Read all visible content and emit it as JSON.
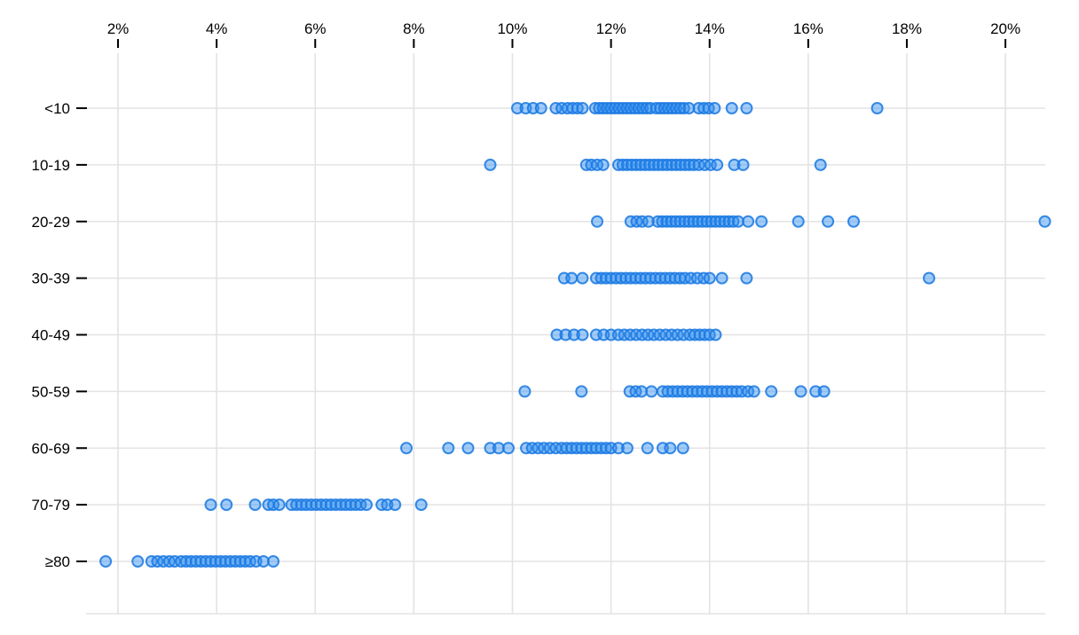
{
  "chart_data": {
    "type": "scatter",
    "variant": "strip-plot",
    "title": "",
    "xlabel": "",
    "ylabel": "",
    "x_axis": {
      "position": "top",
      "tick_values": [
        2,
        4,
        6,
        8,
        10,
        12,
        14,
        16,
        18,
        20
      ],
      "tick_labels": [
        "2%",
        "4%",
        "6%",
        "8%",
        "10%",
        "12%",
        "14%",
        "16%",
        "18%",
        "20%"
      ],
      "xlim": [
        1.4,
        21.3
      ],
      "unit": "percent"
    },
    "y_axis": {
      "categories": [
        "<10",
        "10-19",
        "20-29",
        "30-39",
        "40-49",
        "50-59",
        "60-69",
        "70-79",
        "≥80"
      ]
    },
    "grid": true,
    "legend": "none",
    "marker": {
      "shape": "circle",
      "fill": "#2e8ff2",
      "fill_opacity": 0.45,
      "stroke": "#1a78e0",
      "stroke_opacity": 0.85,
      "radius_px": 6
    },
    "colors": {
      "gridline": "#e3e3e3",
      "tick_mark": "#000000",
      "text": "#000000",
      "background": "#ffffff"
    },
    "series": [
      {
        "category": "<10",
        "values": [
          10.1,
          10.27,
          10.42,
          10.58,
          10.88,
          11.0,
          11.12,
          11.22,
          11.32,
          11.42,
          11.68,
          11.76,
          11.84,
          11.92,
          12.0,
          12.08,
          12.16,
          12.24,
          12.32,
          12.4,
          12.48,
          12.56,
          12.64,
          12.72,
          12.8,
          12.92,
          13.0,
          13.08,
          13.16,
          13.24,
          13.32,
          13.4,
          13.48,
          13.58,
          13.78,
          13.88,
          13.98,
          14.1,
          14.45,
          14.75,
          17.4
        ]
      },
      {
        "category": "10-19",
        "values": [
          9.55,
          11.5,
          11.6,
          11.72,
          11.84,
          12.15,
          12.24,
          12.33,
          12.42,
          12.51,
          12.6,
          12.69,
          12.78,
          12.87,
          12.96,
          13.05,
          13.14,
          13.23,
          13.32,
          13.41,
          13.5,
          13.59,
          13.68,
          13.78,
          13.9,
          14.02,
          14.15,
          14.5,
          14.68,
          16.25
        ]
      },
      {
        "category": "20-29",
        "values": [
          11.72,
          12.4,
          12.52,
          12.63,
          12.76,
          12.95,
          13.04,
          13.13,
          13.22,
          13.31,
          13.4,
          13.49,
          13.58,
          13.67,
          13.76,
          13.85,
          13.94,
          14.03,
          14.12,
          14.21,
          14.3,
          14.39,
          14.48,
          14.58,
          14.78,
          15.05,
          15.8,
          16.4,
          16.92,
          20.8
        ]
      },
      {
        "category": "30-39",
        "values": [
          11.05,
          11.2,
          11.42,
          11.7,
          11.8,
          11.9,
          12.0,
          12.1,
          12.2,
          12.3,
          12.4,
          12.5,
          12.6,
          12.7,
          12.8,
          12.9,
          13.0,
          13.1,
          13.2,
          13.3,
          13.4,
          13.5,
          13.62,
          13.75,
          13.88,
          14.0,
          14.25,
          14.75,
          18.45
        ]
      },
      {
        "category": "40-49",
        "values": [
          10.9,
          11.08,
          11.25,
          11.42,
          11.7,
          11.85,
          12.0,
          12.15,
          12.27,
          12.39,
          12.51,
          12.63,
          12.75,
          12.87,
          12.99,
          13.11,
          13.23,
          13.35,
          13.47,
          13.6,
          13.7,
          13.8,
          13.9,
          14.0,
          14.12
        ]
      },
      {
        "category": "50-59",
        "values": [
          10.25,
          11.4,
          12.38,
          12.5,
          12.62,
          12.82,
          13.05,
          13.15,
          13.25,
          13.35,
          13.45,
          13.55,
          13.65,
          13.75,
          13.85,
          13.95,
          14.05,
          14.15,
          14.25,
          14.35,
          14.45,
          14.55,
          14.65,
          14.78,
          14.9,
          15.25,
          15.85,
          16.15,
          16.32
        ]
      },
      {
        "category": "60-69",
        "values": [
          7.85,
          8.7,
          9.1,
          9.55,
          9.72,
          9.92,
          10.28,
          10.4,
          10.52,
          10.64,
          10.76,
          10.88,
          11.0,
          11.1,
          11.2,
          11.3,
          11.4,
          11.5,
          11.6,
          11.7,
          11.8,
          11.9,
          12.0,
          12.15,
          12.33,
          12.74,
          13.05,
          13.2,
          13.46
        ]
      },
      {
        "category": "70-79",
        "values": [
          3.88,
          4.2,
          4.78,
          5.05,
          5.15,
          5.27,
          5.52,
          5.62,
          5.72,
          5.82,
          5.92,
          6.02,
          6.12,
          6.22,
          6.32,
          6.42,
          6.52,
          6.62,
          6.72,
          6.82,
          6.92,
          7.04,
          7.35,
          7.46,
          7.62,
          8.15
        ]
      },
      {
        "category": "≥80",
        "values": [
          1.75,
          2.4,
          2.68,
          2.8,
          2.92,
          3.04,
          3.15,
          3.28,
          3.38,
          3.48,
          3.58,
          3.68,
          3.78,
          3.88,
          3.98,
          4.08,
          4.18,
          4.28,
          4.38,
          4.48,
          4.58,
          4.68,
          4.8,
          4.95,
          5.15
        ]
      }
    ]
  }
}
